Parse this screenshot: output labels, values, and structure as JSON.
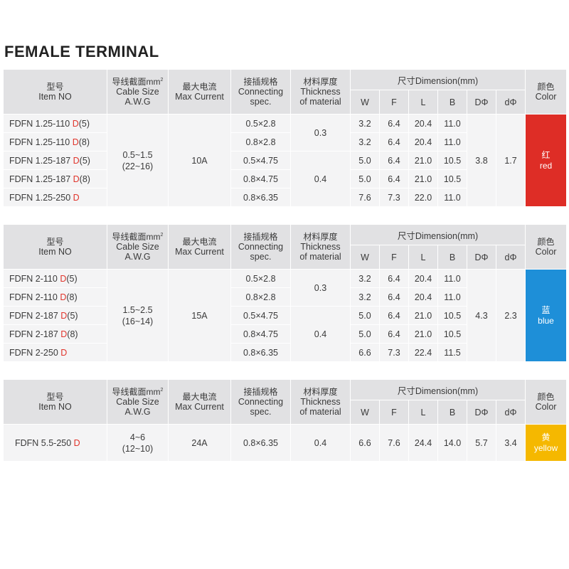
{
  "title": "FEMALE TERMINAL",
  "headers": {
    "item": {
      "zh": "型号",
      "en": "Item NO"
    },
    "cable": {
      "zh": "导线截面mm",
      "sup": "2",
      "en1": "Cable Size",
      "en2": "A.W.G"
    },
    "current": {
      "zh": "最大电流",
      "en": "Max Current"
    },
    "connecting": {
      "zh": "接插规格",
      "en1": "Connecting",
      "en2": "spec."
    },
    "thickness": {
      "zh": "材料厚度",
      "en1": "Thickness",
      "en2": "of material"
    },
    "dimension": "尺寸Dimension(mm)",
    "dim_cols": [
      "W",
      "F",
      "L",
      "B",
      "DΦ",
      "dΦ"
    ],
    "color": {
      "zh": "颜色",
      "en": "Color"
    }
  },
  "colors": {
    "red": "#de2d26",
    "blue": "#1e8fd8",
    "yellow": "#f5b800",
    "header_bg": "#e1e1e3",
    "cell_bg": "#f4f4f5",
    "d_accent": "#e0342b"
  },
  "tables": [
    {
      "cable": [
        "0.5~1.5",
        "(22~16)"
      ],
      "current": "10A",
      "thickness": [
        "0.3",
        "0.4"
      ],
      "D": "3.8",
      "d": "1.7",
      "color_zh": "红",
      "color_en": "red",
      "rows": [
        {
          "prefix": "FDFN 1.25-110 ",
          "d": "D",
          "suffix": "(5)",
          "spec": "0.5×2.8",
          "W": "3.2",
          "F": "6.4",
          "L": "20.4",
          "B": "11.0"
        },
        {
          "prefix": "FDFN 1.25-110 ",
          "d": "D",
          "suffix": "(8)",
          "spec": "0.8×2.8",
          "W": "3.2",
          "F": "6.4",
          "L": "20.4",
          "B": "11.0"
        },
        {
          "prefix": "FDFN 1.25-187 ",
          "d": "D",
          "suffix": "(5)",
          "spec": "0.5×4.75",
          "W": "5.0",
          "F": "6.4",
          "L": "21.0",
          "B": "10.5"
        },
        {
          "prefix": "FDFN 1.25-187 ",
          "d": "D",
          "suffix": "(8)",
          "spec": "0.8×4.75",
          "W": "5.0",
          "F": "6.4",
          "L": "21.0",
          "B": "10.5"
        },
        {
          "prefix": "FDFN 1.25-250 ",
          "d": "D",
          "suffix": "",
          "spec": "0.8×6.35",
          "W": "7.6",
          "F": "7.3",
          "L": "22.0",
          "B": "11.0"
        }
      ]
    },
    {
      "cable": [
        "1.5~2.5",
        "(16~14)"
      ],
      "current": "15A",
      "thickness": [
        "0.3",
        "0.4"
      ],
      "D": "4.3",
      "d": "2.3",
      "color_zh": "蓝",
      "color_en": "blue",
      "rows": [
        {
          "prefix": "FDFN 2-110 ",
          "d": "D",
          "suffix": "(5)",
          "spec": "0.5×2.8",
          "W": "3.2",
          "F": "6.4",
          "L": "20.4",
          "B": "11.0"
        },
        {
          "prefix": "FDFN 2-110 ",
          "d": "D",
          "suffix": "(8)",
          "spec": "0.8×2.8",
          "W": "3.2",
          "F": "6.4",
          "L": "20.4",
          "B": "11.0"
        },
        {
          "prefix": "FDFN 2-187 ",
          "d": "D",
          "suffix": "(5)",
          "spec": "0.5×4.75",
          "W": "5.0",
          "F": "6.4",
          "L": "21.0",
          "B": "10.5"
        },
        {
          "prefix": "FDFN 2-187 ",
          "d": "D",
          "suffix": "(8)",
          "spec": "0.8×4.75",
          "W": "5.0",
          "F": "6.4",
          "L": "21.0",
          "B": "10.5"
        },
        {
          "prefix": "FDFN 2-250 ",
          "d": "D",
          "suffix": "",
          "spec": "0.8×6.35",
          "W": "6.6",
          "F": "7.3",
          "L": "22.4",
          "B": "11.5"
        }
      ]
    },
    {
      "cable": [
        "4~6",
        "(12~10)"
      ],
      "current": "24A",
      "D": "5.7",
      "d": "3.4",
      "color_zh": "黄",
      "color_en": "yellow",
      "rows": [
        {
          "prefix": "FDFN 5.5-250 ",
          "d": "D",
          "suffix": "",
          "spec": "0.8×6.35",
          "thickness": "0.4",
          "W": "6.6",
          "F": "7.6",
          "L": "24.4",
          "B": "14.0"
        }
      ]
    }
  ]
}
